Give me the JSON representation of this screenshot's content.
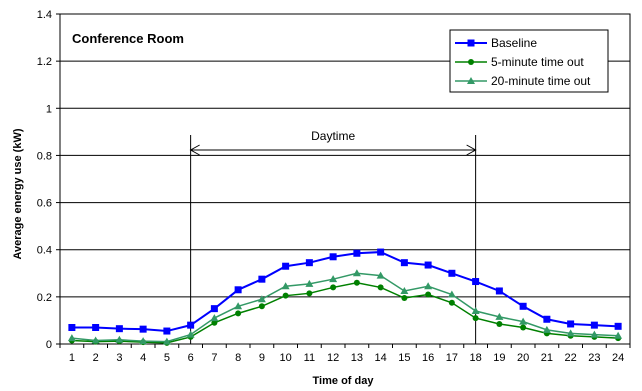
{
  "chart_data": {
    "type": "line",
    "title": "Conference Room",
    "xlabel": "Time of day",
    "ylabel": "Average energy use (kW)",
    "x": [
      1,
      2,
      3,
      4,
      5,
      6,
      7,
      8,
      9,
      10,
      11,
      12,
      13,
      14,
      15,
      16,
      17,
      18,
      19,
      20,
      21,
      22,
      23,
      24
    ],
    "xlim": [
      0.5,
      24.5
    ],
    "ylim": [
      0,
      1.4
    ],
    "yticks": [
      0,
      0.2,
      0.4,
      0.6,
      0.8,
      1,
      1.2,
      1.4
    ],
    "grid": true,
    "legend": "top-right",
    "series": [
      {
        "name": "Baseline",
        "color": "#0000ff",
        "marker": "square",
        "values": [
          0.07,
          0.07,
          0.065,
          0.063,
          0.055,
          0.08,
          0.15,
          0.23,
          0.275,
          0.33,
          0.345,
          0.37,
          0.385,
          0.39,
          0.345,
          0.335,
          0.3,
          0.265,
          0.225,
          0.16,
          0.105,
          0.085,
          0.08,
          0.075
        ]
      },
      {
        "name": "5-minute time out",
        "color": "#008000",
        "marker": "circle",
        "values": [
          0.015,
          0.01,
          0.012,
          0.008,
          0.005,
          0.03,
          0.09,
          0.13,
          0.16,
          0.205,
          0.215,
          0.24,
          0.26,
          0.24,
          0.195,
          0.21,
          0.175,
          0.11,
          0.085,
          0.07,
          0.045,
          0.035,
          0.03,
          0.025
        ]
      },
      {
        "name": "20-minute time out",
        "color": "#339966",
        "marker": "triangle",
        "values": [
          0.025,
          0.015,
          0.018,
          0.012,
          0.01,
          0.04,
          0.11,
          0.16,
          0.19,
          0.245,
          0.255,
          0.275,
          0.3,
          0.29,
          0.225,
          0.245,
          0.21,
          0.14,
          0.115,
          0.095,
          0.06,
          0.045,
          0.04,
          0.035
        ]
      }
    ],
    "annotations": {
      "range_label": "Daytime",
      "range_start": 6,
      "range_end": 18
    }
  }
}
